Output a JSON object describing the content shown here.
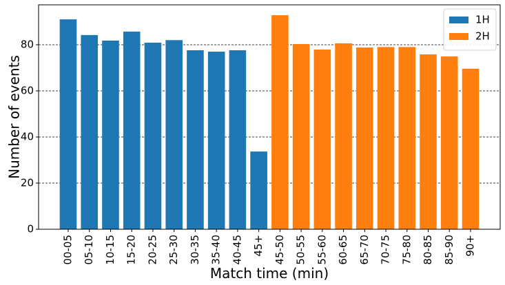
{
  "chart_data": {
    "type": "bar",
    "xlabel": "Match time (min)",
    "ylabel": "Number of events",
    "categories": [
      "00-05",
      "05-10",
      "10-15",
      "15-20",
      "20-25",
      "25-30",
      "30-35",
      "35-40",
      "40-45",
      "45+",
      "45-50",
      "50-55",
      "55-60",
      "60-65",
      "65-70",
      "70-75",
      "75-80",
      "80-85",
      "85-90",
      "90+"
    ],
    "series": [
      {
        "name": "1H",
        "color": "#1f77b4",
        "values": [
          91,
          84.2,
          81.8,
          85.7,
          80.9,
          82,
          77.6,
          77,
          77.6,
          33.7,
          null,
          null,
          null,
          null,
          null,
          null,
          null,
          null,
          null,
          null
        ]
      },
      {
        "name": "2H",
        "color": "#ff7f0e",
        "values": [
          null,
          null,
          null,
          null,
          null,
          null,
          null,
          null,
          null,
          null,
          92.8,
          80.3,
          77.9,
          80.6,
          78.8,
          79,
          79,
          75.8,
          74.9,
          69.6
        ]
      }
    ],
    "ylim": [
      0,
      97.3
    ],
    "yticks": [
      0,
      20,
      40,
      60,
      80
    ],
    "grid": true,
    "legend": "upper right"
  }
}
